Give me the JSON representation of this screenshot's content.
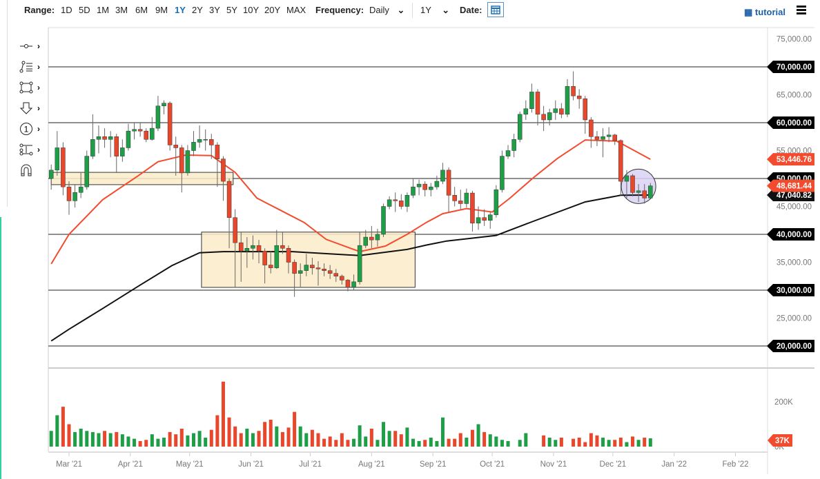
{
  "toolbar": {
    "range_label": "Range:",
    "ranges": [
      "1D",
      "5D",
      "1M",
      "3M",
      "6M",
      "9M",
      "1Y",
      "2Y",
      "3Y",
      "5Y",
      "10Y",
      "20Y",
      "MAX"
    ],
    "selected_range": "1Y",
    "frequency_label": "Frequency:",
    "frequency_value": "Daily",
    "period_value": "1Y",
    "date_label": "Date:",
    "tutorial_label": "tutorial",
    "accent": "#1a6fb5"
  },
  "drawing_tools": [
    {
      "icon": "trend-line-icon"
    },
    {
      "icon": "fibonacci-icon"
    },
    {
      "icon": "rectangle-icon"
    },
    {
      "icon": "arrow-down-icon"
    },
    {
      "icon": "counter-1-icon"
    },
    {
      "icon": "measure-icon"
    },
    {
      "icon": "magnet-icon"
    }
  ],
  "chart_data": {
    "type": "candlestick",
    "colors": {
      "up": "#1e9e47",
      "down": "#e8472c",
      "ma_fast": "#f24b2e",
      "ma_slow": "#111111",
      "zone_fill": "#fcebc9",
      "circle_fill": "#d9d2f4"
    },
    "ylim": [
      17500,
      78000
    ],
    "price_ticks": [
      "75,000.00",
      "65,000.00",
      "55,000.00",
      "45,000.00",
      "35,000.00",
      "25,000.00"
    ],
    "price_tick_values": [
      75000,
      65000,
      55000,
      45000,
      35000,
      25000
    ],
    "horizontal_lines": [
      {
        "value": 70000,
        "label": "70,000.00"
      },
      {
        "value": 60000,
        "label": "60,000.00"
      },
      {
        "value": 50000,
        "label": "50,000.00"
      },
      {
        "value": 40000,
        "label": "40,000.00"
      },
      {
        "value": 30000,
        "label": "30,000.00"
      },
      {
        "value": 20000,
        "label": "20,000.00"
      }
    ],
    "price_tags": [
      {
        "value": 53446.76,
        "label": "53,446.76",
        "color": "#f24b2e"
      },
      {
        "value": 47040.82,
        "label": "47,040.82",
        "color": "#111111"
      },
      {
        "value": 48681.44,
        "label": "48,681.44",
        "color": "#f24b2e"
      }
    ],
    "x_ticks": [
      {
        "date": "2021-03-01",
        "label": "Mar '21"
      },
      {
        "date": "2021-04-01",
        "label": "Apr '21"
      },
      {
        "date": "2021-05-01",
        "label": "May '21"
      },
      {
        "date": "2021-06-01",
        "label": "Jun '21"
      },
      {
        "date": "2021-07-01",
        "label": "Jul '21"
      },
      {
        "date": "2021-08-01",
        "label": "Aug '21"
      },
      {
        "date": "2021-09-01",
        "label": "Sep '21"
      },
      {
        "date": "2021-10-01",
        "label": "Oct '21"
      },
      {
        "date": "2021-11-01",
        "label": "Nov '21"
      },
      {
        "date": "2021-12-01",
        "label": "Dec '21"
      },
      {
        "date": "2022-01-01",
        "label": "Jan '22"
      },
      {
        "date": "2022-02-01",
        "label": "Feb '22"
      }
    ],
    "volume_ticks": [
      {
        "value": 200,
        "label": "200K"
      },
      {
        "value": 0,
        "label": "0K"
      }
    ],
    "volume_tag": {
      "value": 37,
      "label": "37K",
      "color": "#f24b2e"
    },
    "zones": [
      {
        "from": "2021-02-20",
        "to": "2021-05-23",
        "low": 48900,
        "high": 51100
      },
      {
        "from": "2021-05-07",
        "to": "2021-08-23",
        "low": 30500,
        "high": 40400
      }
    ],
    "circle": {
      "date": "2021-12-14",
      "price": 48600
    },
    "ma_fast": [
      [
        "2021-02-20",
        34700
      ],
      [
        "2021-03-01",
        40000
      ],
      [
        "2021-03-18",
        46200
      ],
      [
        "2021-04-05",
        50500
      ],
      [
        "2021-04-15",
        53000
      ],
      [
        "2021-04-29",
        54200
      ],
      [
        "2021-05-12",
        54100
      ],
      [
        "2021-05-24",
        51100
      ],
      [
        "2021-06-04",
        46500
      ],
      [
        "2021-06-16",
        44300
      ],
      [
        "2021-06-28",
        42100
      ],
      [
        "2021-07-09",
        39100
      ],
      [
        "2021-07-26",
        36900
      ],
      [
        "2021-08-08",
        37900
      ],
      [
        "2021-08-19",
        40000
      ],
      [
        "2021-08-29",
        42200
      ],
      [
        "2021-09-06",
        43700
      ],
      [
        "2021-09-18",
        44600
      ],
      [
        "2021-10-01",
        44000
      ],
      [
        "2021-10-10",
        46500
      ],
      [
        "2021-10-22",
        50200
      ],
      [
        "2021-11-03",
        53600
      ],
      [
        "2021-11-17",
        56900
      ],
      [
        "2021-12-03",
        56700
      ],
      [
        "2021-12-20",
        53446.76
      ]
    ],
    "ma_slow": [
      [
        "2021-02-20",
        20900
      ],
      [
        "2021-03-01",
        23000
      ],
      [
        "2021-03-18",
        26700
      ],
      [
        "2021-04-05",
        30700
      ],
      [
        "2021-04-22",
        34400
      ],
      [
        "2021-05-06",
        36700
      ],
      [
        "2021-05-18",
        36900
      ],
      [
        "2021-06-22",
        36900
      ],
      [
        "2021-07-26",
        36200
      ],
      [
        "2021-08-19",
        37300
      ],
      [
        "2021-08-29",
        38100
      ],
      [
        "2021-09-08",
        38800
      ],
      [
        "2021-10-03",
        39800
      ],
      [
        "2021-10-20",
        42100
      ],
      [
        "2021-11-17",
        45800
      ],
      [
        "2021-12-05",
        47000
      ],
      [
        "2021-12-20",
        47040.82
      ]
    ],
    "candles": [
      [
        "2021-02-20",
        50000,
        52500,
        48000,
        51500
      ],
      [
        "2021-02-23",
        51500,
        58500,
        50500,
        55500
      ],
      [
        "2021-02-26",
        55500,
        56500,
        47000,
        48500
      ],
      [
        "2021-03-01",
        48500,
        49500,
        43500,
        46000
      ],
      [
        "2021-03-04",
        46000,
        49000,
        44800,
        47500
      ],
      [
        "2021-03-07",
        47500,
        51000,
        46500,
        48500
      ],
      [
        "2021-03-10",
        48500,
        55000,
        48000,
        54000
      ],
      [
        "2021-03-13",
        54000,
        61500,
        53500,
        57000
      ],
      [
        "2021-03-16",
        57000,
        59500,
        54500,
        57500
      ],
      [
        "2021-03-19",
        57500,
        59000,
        55500,
        57000
      ],
      [
        "2021-03-22",
        57000,
        58500,
        53800,
        57500
      ],
      [
        "2021-03-25",
        57500,
        58000,
        51000,
        54000
      ],
      [
        "2021-03-28",
        54000,
        57000,
        53000,
        55500
      ],
      [
        "2021-03-31",
        55500,
        59800,
        55000,
        58500
      ],
      [
        "2021-04-03",
        58500,
        60000,
        57000,
        58800
      ],
      [
        "2021-04-06",
        58800,
        60000,
        57500,
        58500
      ],
      [
        "2021-04-09",
        58500,
        59000,
        56500,
        57000
      ],
      [
        "2021-04-12",
        57000,
        61000,
        56800,
        59000
      ],
      [
        "2021-04-15",
        59000,
        64800,
        58500,
        63000
      ],
      [
        "2021-04-18",
        63000,
        64000,
        61500,
        63500
      ],
      [
        "2021-04-21",
        63500,
        63800,
        55000,
        56000
      ],
      [
        "2021-04-24",
        56000,
        57500,
        50500,
        55500
      ],
      [
        "2021-04-27",
        55500,
        56000,
        47500,
        51000
      ],
      [
        "2021-04-30",
        51000,
        56000,
        50500,
        55000
      ],
      [
        "2021-05-03",
        55000,
        58500,
        54000,
        56500
      ],
      [
        "2021-05-06",
        56500,
        59500,
        55500,
        57000
      ],
      [
        "2021-05-09",
        57000,
        58800,
        55000,
        57000
      ],
      [
        "2021-05-12",
        57000,
        58000,
        53500,
        56000
      ],
      [
        "2021-05-15",
        56000,
        56500,
        48500,
        53500
      ],
      [
        "2021-05-18",
        53500,
        54000,
        46000,
        49500
      ],
      [
        "2021-05-21",
        49500,
        50000,
        37500,
        43000
      ],
      [
        "2021-05-24",
        43000,
        44500,
        30500,
        38500
      ],
      [
        "2021-05-27",
        38500,
        40500,
        31500,
        37000
      ],
      [
        "2021-05-30",
        37000,
        39500,
        34000,
        37500
      ],
      [
        "2021-06-02",
        37500,
        39800,
        35500,
        38000
      ],
      [
        "2021-06-05",
        38000,
        39000,
        34800,
        37000
      ],
      [
        "2021-06-08",
        37000,
        37500,
        31200,
        34500
      ],
      [
        "2021-06-11",
        34500,
        37000,
        33000,
        34000
      ],
      [
        "2021-06-14",
        34000,
        40800,
        33800,
        38000
      ],
      [
        "2021-06-17",
        38000,
        40500,
        36500,
        37500
      ],
      [
        "2021-06-20",
        37500,
        38000,
        33000,
        35000
      ],
      [
        "2021-06-23",
        35000,
        35500,
        28800,
        33000
      ],
      [
        "2021-06-26",
        33000,
        34800,
        30600,
        33500
      ],
      [
        "2021-06-29",
        33500,
        36500,
        32500,
        34500
      ],
      [
        "2021-07-02",
        34500,
        35800,
        32800,
        34000
      ],
      [
        "2021-07-05",
        34000,
        35200,
        30800,
        33800
      ],
      [
        "2021-07-08",
        33800,
        34800,
        32500,
        33500
      ],
      [
        "2021-07-11",
        33500,
        34500,
        32000,
        33000
      ],
      [
        "2021-07-14",
        33000,
        33800,
        31500,
        32500
      ],
      [
        "2021-07-17",
        32500,
        32800,
        31000,
        31800
      ],
      [
        "2021-07-20",
        31800,
        32000,
        29800,
        30500
      ],
      [
        "2021-07-23",
        30500,
        32800,
        30000,
        31500
      ],
      [
        "2021-07-26",
        31500,
        40500,
        31000,
        38000
      ],
      [
        "2021-07-29",
        38000,
        40800,
        37500,
        39500
      ],
      [
        "2021-08-01",
        39500,
        41500,
        37500,
        39000
      ],
      [
        "2021-08-04",
        39000,
        41000,
        37800,
        40000
      ],
      [
        "2021-08-07",
        40000,
        45500,
        39500,
        45000
      ],
      [
        "2021-08-10",
        45000,
        46800,
        44500,
        46200
      ],
      [
        "2021-08-13",
        46200,
        47500,
        44000,
        46000
      ],
      [
        "2021-08-16",
        46000,
        47200,
        44500,
        45000
      ],
      [
        "2021-08-19",
        45000,
        47500,
        44000,
        47000
      ],
      [
        "2021-08-22",
        47000,
        50000,
        46500,
        48500
      ],
      [
        "2021-08-25",
        48500,
        49800,
        47000,
        49000
      ],
      [
        "2021-08-28",
        49000,
        49500,
        46800,
        48000
      ],
      [
        "2021-08-31",
        48000,
        49200,
        46800,
        48500
      ],
      [
        "2021-09-03",
        48500,
        50500,
        48000,
        49500
      ],
      [
        "2021-09-06",
        49500,
        52800,
        49000,
        51500
      ],
      [
        "2021-09-09",
        51500,
        52000,
        44000,
        47000
      ],
      [
        "2021-09-12",
        47000,
        48500,
        45000,
        46000
      ],
      [
        "2021-09-15",
        46000,
        48000,
        44500,
        45500
      ],
      [
        "2021-09-18",
        45500,
        48200,
        44800,
        47400
      ],
      [
        "2021-09-21",
        47400,
        47800,
        40500,
        42000
      ],
      [
        "2021-09-24",
        42000,
        45000,
        40800,
        43000
      ],
      [
        "2021-09-27",
        43000,
        44500,
        41500,
        42500
      ],
      [
        "2021-09-30",
        42500,
        44000,
        41000,
        43500
      ],
      [
        "2021-10-03",
        43500,
        48800,
        43000,
        48000
      ],
      [
        "2021-10-06",
        48000,
        55000,
        47500,
        54000
      ],
      [
        "2021-10-09",
        54000,
        56000,
        53500,
        55000
      ],
      [
        "2021-10-12",
        55000,
        58000,
        53800,
        57000
      ],
      [
        "2021-10-15",
        57000,
        62000,
        56500,
        61500
      ],
      [
        "2021-10-18",
        61500,
        64000,
        60500,
        62500
      ],
      [
        "2021-10-21",
        62500,
        67000,
        61800,
        65500
      ],
      [
        "2021-10-24",
        65500,
        66000,
        59500,
        61500
      ],
      [
        "2021-10-27",
        61500,
        63000,
        58500,
        60500
      ],
      [
        "2021-10-30",
        60500,
        62500,
        59500,
        61800
      ],
      [
        "2021-11-02",
        61800,
        64000,
        60500,
        62500
      ],
      [
        "2021-11-05",
        62500,
        63500,
        60800,
        61500
      ],
      [
        "2021-11-08",
        61500,
        67800,
        61000,
        66500
      ],
      [
        "2021-11-11",
        66500,
        69200,
        64000,
        64800
      ],
      [
        "2021-11-14",
        64800,
        66000,
        62500,
        64300
      ],
      [
        "2021-11-17",
        64300,
        64800,
        58000,
        60500
      ],
      [
        "2021-11-20",
        60500,
        61000,
        55500,
        57500
      ],
      [
        "2021-11-23",
        57500,
        58500,
        55800,
        57000
      ],
      [
        "2021-11-26",
        57000,
        59000,
        53800,
        57500
      ],
      [
        "2021-11-29",
        57500,
        59200,
        56500,
        57800
      ],
      [
        "2021-12-02",
        57800,
        58000,
        56000,
        56800
      ],
      [
        "2021-12-05",
        56800,
        57000,
        47000,
        49500
      ],
      [
        "2021-12-08",
        49500,
        51500,
        46500,
        50500
      ],
      [
        "2021-12-11",
        50500,
        50800,
        46800,
        47500
      ],
      [
        "2021-12-14",
        47500,
        49000,
        45800,
        47800
      ],
      [
        "2021-12-17",
        47800,
        49000,
        45500,
        46500
      ],
      [
        "2021-12-20",
        46500,
        49200,
        46300,
        48681.44
      ]
    ],
    "volumes_k": [
      70,
      140,
      178,
      100,
      65,
      80,
      70,
      65,
      60,
      70,
      60,
      65,
      55,
      45,
      35,
      25,
      30,
      55,
      35,
      40,
      65,
      55,
      80,
      50,
      60,
      70,
      40,
      75,
      140,
      290,
      130,
      90,
      60,
      80,
      60,
      70,
      110,
      120,
      90,
      65,
      85,
      155,
      90,
      60,
      75,
      60,
      35,
      45,
      30,
      60,
      30,
      35,
      95,
      45,
      80,
      30,
      110,
      70,
      70,
      55,
      85,
      35,
      25,
      30,
      40,
      25,
      130,
      35,
      35,
      60,
      40,
      75,
      100,
      65,
      55,
      45,
      30,
      25,
      0,
      30,
      60,
      0,
      0,
      50,
      40,
      30,
      40,
      0,
      35,
      40,
      20,
      60,
      50,
      40,
      30,
      30,
      40,
      20,
      45,
      30,
      40,
      37
    ]
  }
}
